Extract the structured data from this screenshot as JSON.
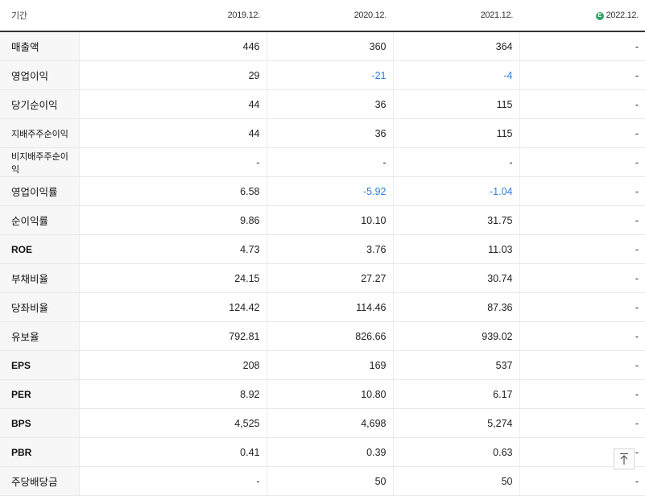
{
  "header": {
    "label": "기간",
    "periods": [
      "2019.12.",
      "2020.12.",
      "2021.12.",
      "2022.12."
    ],
    "estimate_icon": "estimate-icon",
    "estimate_icon_glyph": "E"
  },
  "rows": [
    {
      "label": "매출액",
      "values": [
        "446",
        "360",
        "364",
        "-"
      ]
    },
    {
      "label": "영업이익",
      "values": [
        "29",
        "-21",
        "-4",
        "-"
      ]
    },
    {
      "label": "당기순이익",
      "values": [
        "44",
        "36",
        "115",
        "-"
      ]
    },
    {
      "label": "지배주주순이익",
      "values": [
        "44",
        "36",
        "115",
        "-"
      ]
    },
    {
      "label": "비지배주주순이익",
      "values": [
        "-",
        "-",
        "-",
        "-"
      ]
    },
    {
      "label": "영업이익률",
      "values": [
        "6.58",
        "-5.92",
        "-1.04",
        "-"
      ]
    },
    {
      "label": "순이익률",
      "values": [
        "9.86",
        "10.10",
        "31.75",
        "-"
      ]
    },
    {
      "label": "ROE",
      "values": [
        "4.73",
        "3.76",
        "11.03",
        "-"
      ]
    },
    {
      "label": "부채비율",
      "values": [
        "24.15",
        "27.27",
        "30.74",
        "-"
      ]
    },
    {
      "label": "당좌비율",
      "values": [
        "124.42",
        "114.46",
        "87.36",
        "-"
      ]
    },
    {
      "label": "유보율",
      "values": [
        "792.81",
        "826.66",
        "939.02",
        "-"
      ]
    },
    {
      "label": "EPS",
      "values": [
        "208",
        "169",
        "537",
        "-"
      ]
    },
    {
      "label": "PER",
      "values": [
        "8.92",
        "10.80",
        "6.17",
        "-"
      ]
    },
    {
      "label": "BPS",
      "values": [
        "4,525",
        "4,698",
        "5,274",
        "-"
      ]
    },
    {
      "label": "PBR",
      "values": [
        "0.41",
        "0.39",
        "0.63",
        "-"
      ]
    },
    {
      "label": "주당배당금",
      "values": [
        "-",
        "50",
        "50",
        "-"
      ]
    }
  ],
  "colors": {
    "negative": "#2f7fd6",
    "estimate": "#2fa36b"
  },
  "scroll_top_icon": "arrow-up-icon"
}
